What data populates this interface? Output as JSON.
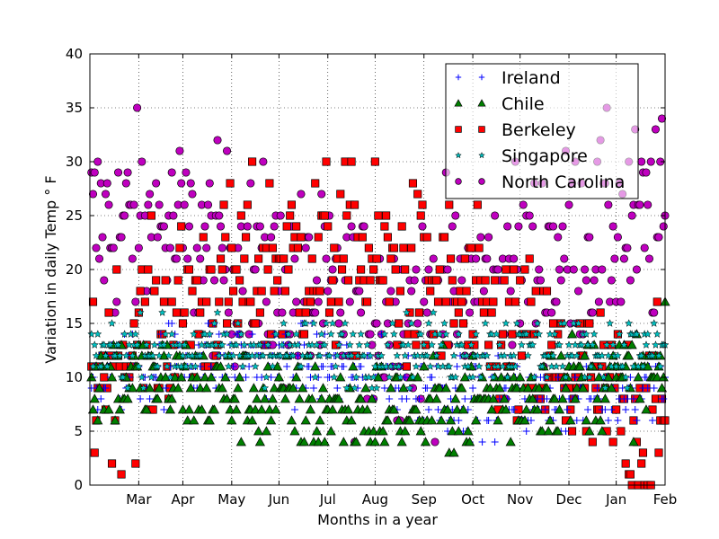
{
  "chart_data": {
    "type": "scatter",
    "xlabel": "Months in a year",
    "ylabel": "Variation in daily Temp ° F",
    "xlim": [
      0,
      365
    ],
    "ylim": [
      0,
      40
    ],
    "yticks": [
      0,
      5,
      10,
      15,
      20,
      25,
      30,
      35,
      40
    ],
    "x_tick_labels": [
      "Mar",
      "Apr",
      "May",
      "Jun",
      "Jul",
      "Aug",
      "Sep",
      "Oct",
      "Nov",
      "Dec",
      "Jan",
      "Feb"
    ],
    "x_tick_days": [
      31,
      59,
      90,
      120,
      151,
      181,
      212,
      243,
      273,
      304,
      334,
      365
    ],
    "grid": true,
    "legend_position": "upper right",
    "series": [
      {
        "name": "Ireland",
        "marker": "plus",
        "color": "#0000ff"
      },
      {
        "name": "Chile",
        "marker": "triangle",
        "color": "#008000"
      },
      {
        "name": "Berkeley",
        "marker": "square",
        "color": "#ff0000"
      },
      {
        "name": "Singapore",
        "marker": "star",
        "color": "#00bfbf"
      },
      {
        "name": "North Carolina",
        "marker": "circle",
        "color": "#bf00bf"
      }
    ]
  }
}
